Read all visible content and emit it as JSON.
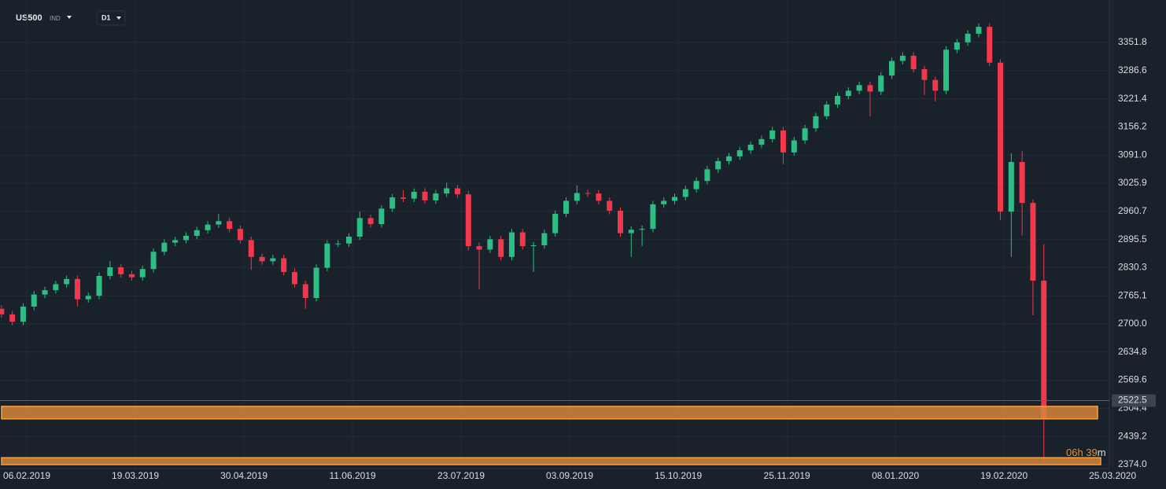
{
  "header": {
    "symbol": "US500",
    "market": "IND",
    "interval": "D1"
  },
  "chart_data": {
    "type": "candlestick",
    "x": [
      0,
      3,
      6,
      9,
      12,
      15,
      18,
      21,
      24,
      27,
      30,
      33,
      36,
      39,
      42,
      45,
      48,
      51,
      54,
      57,
      60,
      63,
      66,
      69,
      72,
      75,
      78,
      81,
      84,
      87,
      90,
      93,
      96,
      99,
      102,
      105,
      108,
      111,
      114,
      117,
      120,
      123,
      126,
      129,
      132,
      135,
      138,
      141,
      144,
      147,
      150,
      153,
      156,
      159,
      162,
      165,
      168,
      171,
      174,
      177,
      180,
      183,
      186,
      189,
      192,
      195,
      198,
      201,
      204,
      207,
      210,
      213,
      216,
      219,
      222,
      225,
      228,
      231,
      234,
      237,
      240,
      243,
      246,
      249,
      252,
      255,
      258,
      261,
      264,
      267,
      270,
      273,
      276,
      279,
      282,
      285,
      288
    ],
    "open": [
      2735,
      2722,
      2705,
      2740,
      2768,
      2778,
      2792,
      2804,
      2757,
      2765,
      2811,
      2831,
      2815,
      2808,
      2827,
      2867,
      2888,
      2894,
      2904,
      2917,
      2930,
      2938,
      2920,
      2894,
      2855,
      2845,
      2852,
      2820,
      2792,
      2760,
      2830,
      2886,
      2886,
      2902,
      2945,
      2931,
      2967,
      2993,
      2990,
      3006,
      2986,
      3002,
      3014,
      3000,
      2880,
      2872,
      2896,
      2855,
      2912,
      2880,
      2882,
      2910,
      2955,
      2985,
      3003,
      3002,
      2985,
      2962,
      2910,
      2918,
      2920,
      2977,
      2985,
      2994,
      3012,
      3031,
      3058,
      3077,
      3088,
      3102,
      3115,
      3128,
      3148,
      3097,
      3125,
      3153,
      3181,
      3208,
      3228,
      3240,
      3253,
      3238,
      3275,
      3309,
      3321,
      3290,
      3265,
      3240,
      3335,
      3352,
      3372,
      3388,
      3305,
      2960,
      3075,
      2980,
      2800
    ],
    "high": [
      2743,
      2730,
      2748,
      2776,
      2786,
      2800,
      2812,
      2812,
      2773,
      2819,
      2846,
      2839,
      2823,
      2835,
      2875,
      2896,
      2902,
      2912,
      2925,
      2938,
      2955,
      2946,
      2928,
      2902,
      2863,
      2860,
      2860,
      2828,
      2800,
      2838,
      2894,
      2894,
      2910,
      2960,
      2953,
      2975,
      3001,
      3010,
      3014,
      3014,
      3010,
      3027,
      3022,
      3008,
      2888,
      2904,
      2904,
      2920,
      2920,
      2890,
      2918,
      2963,
      2993,
      3021,
      3011,
      3010,
      2993,
      2970,
      2926,
      2928,
      2985,
      2993,
      3002,
      3020,
      3039,
      3066,
      3085,
      3096,
      3110,
      3123,
      3136,
      3156,
      3156,
      3133,
      3161,
      3189,
      3216,
      3236,
      3248,
      3261,
      3261,
      3283,
      3317,
      3329,
      3329,
      3298,
      3273,
      3343,
      3360,
      3380,
      3396,
      3396,
      3313,
      3095,
      3100,
      2988,
      2885
    ],
    "low": [
      2714,
      2697,
      2697,
      2732,
      2760,
      2770,
      2784,
      2740,
      2749,
      2757,
      2803,
      2807,
      2800,
      2800,
      2819,
      2859,
      2880,
      2886,
      2896,
      2909,
      2922,
      2912,
      2886,
      2825,
      2837,
      2837,
      2812,
      2784,
      2735,
      2752,
      2822,
      2878,
      2878,
      2894,
      2923,
      2923,
      2959,
      2982,
      2982,
      2978,
      2978,
      2994,
      2992,
      2870,
      2780,
      2864,
      2847,
      2847,
      2872,
      2820,
      2874,
      2902,
      2947,
      2977,
      2994,
      2977,
      2954,
      2902,
      2855,
      2880,
      2912,
      2969,
      2977,
      2986,
      3004,
      3023,
      3050,
      3069,
      3080,
      3094,
      3107,
      3120,
      3070,
      3089,
      3117,
      3145,
      3173,
      3200,
      3220,
      3232,
      3180,
      3230,
      3267,
      3301,
      3282,
      3230,
      3215,
      3232,
      3327,
      3344,
      3364,
      3297,
      2940,
      2855,
      2905,
      2720,
      2380
    ],
    "close": [
      2722,
      2705,
      2740,
      2768,
      2778,
      2792,
      2804,
      2757,
      2765,
      2811,
      2831,
      2815,
      2808,
      2827,
      2867,
      2888,
      2894,
      2904,
      2917,
      2930,
      2938,
      2920,
      2894,
      2855,
      2845,
      2852,
      2820,
      2792,
      2760,
      2830,
      2886,
      2886,
      2902,
      2945,
      2931,
      2967,
      2993,
      2990,
      3006,
      2986,
      3002,
      3014,
      3000,
      2880,
      2872,
      2896,
      2855,
      2912,
      2880,
      2882,
      2910,
      2955,
      2985,
      3003,
      3002,
      2985,
      2962,
      2910,
      2918,
      2920,
      2977,
      2985,
      2994,
      3012,
      3031,
      3058,
      3077,
      3088,
      3102,
      3115,
      3128,
      3148,
      3097,
      3125,
      3153,
      3181,
      3208,
      3228,
      3240,
      3253,
      3238,
      3275,
      3309,
      3321,
      3290,
      3265,
      3240,
      3335,
      3352,
      3372,
      3388,
      3305,
      2960,
      3075,
      2980,
      2800,
      2480
    ],
    "up_color": "#2ebd85",
    "down_color": "#f0394c",
    "xlim": [
      -0.4,
      306.1
    ],
    "xticks": [
      {
        "value": 7,
        "label": "06.02.2019"
      },
      {
        "value": 37,
        "label": "19.03.2019"
      },
      {
        "value": 67,
        "label": "30.04.2019"
      },
      {
        "value": 97,
        "label": "11.06.2019"
      },
      {
        "value": 127,
        "label": "23.07.2019"
      },
      {
        "value": 157,
        "label": "03.09.2019"
      },
      {
        "value": 187,
        "label": "15.10.2019"
      },
      {
        "value": 217,
        "label": "25.11.2019"
      },
      {
        "value": 247,
        "label": "08.01.2020"
      },
      {
        "value": 277,
        "label": "19.02.2020"
      },
      {
        "value": 307,
        "label": "25.03.2020"
      }
    ],
    "ylim": [
      2364.9,
      3450.1
    ],
    "yticks": [
      3351.8,
      3286.6,
      3221.4,
      3156.2,
      {
        "value": 3091,
        "label": "3091.0"
      },
      3025.9,
      2960.7,
      2895.5,
      2830.3,
      2765.1,
      {
        "value": 2700,
        "label": "2700.0"
      },
      2634.8,
      2569.6,
      2504.4,
      2439.2,
      {
        "value": 2374,
        "label": "2374.0"
      }
    ],
    "grid": true,
    "bands": [
      {
        "from": 2480,
        "to": 2509,
        "color": "#d9843a"
      },
      {
        "from": 2374,
        "to": 2390,
        "color": "#d9843a"
      }
    ],
    "last_price": 2522.5,
    "countdown_value": "06h 39",
    "countdown_unit": "m"
  }
}
